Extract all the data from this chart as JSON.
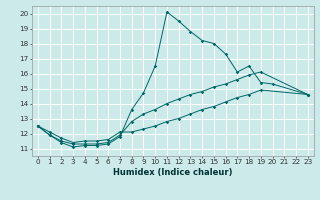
{
  "xlabel": "Humidex (Indice chaleur)",
  "ylabel": "",
  "background_color": "#cceaea",
  "grid_color": "#ffffff",
  "line_color": "#006666",
  "xlim": [
    -0.5,
    23.5
  ],
  "ylim": [
    10.5,
    20.5
  ],
  "xticks": [
    0,
    1,
    2,
    3,
    4,
    5,
    6,
    7,
    8,
    9,
    10,
    11,
    12,
    13,
    14,
    15,
    16,
    17,
    18,
    19,
    20,
    21,
    22,
    23
  ],
  "yticks": [
    11,
    12,
    13,
    14,
    15,
    16,
    17,
    18,
    19,
    20
  ],
  "line1_y": [
    12.5,
    11.9,
    11.4,
    11.1,
    11.2,
    11.2,
    11.3,
    11.8,
    13.6,
    14.7,
    16.5,
    20.1,
    19.5,
    18.8,
    18.2,
    18.0,
    17.3,
    16.1,
    16.5,
    15.4,
    15.3,
    null,
    null,
    14.6
  ],
  "line2_y": [
    12.5,
    11.9,
    11.5,
    11.3,
    11.3,
    11.3,
    11.4,
    11.9,
    12.8,
    13.3,
    13.6,
    14.0,
    14.3,
    14.6,
    14.8,
    15.1,
    15.3,
    15.6,
    15.9,
    16.1,
    null,
    null,
    null,
    14.6
  ],
  "line3_y": [
    12.5,
    12.1,
    11.7,
    11.4,
    11.5,
    11.5,
    11.6,
    12.1,
    12.1,
    12.3,
    12.5,
    12.8,
    13.0,
    13.3,
    13.6,
    13.8,
    14.1,
    14.4,
    14.6,
    14.9,
    null,
    null,
    null,
    14.6
  ],
  "xlabel_fontsize": 6.0,
  "tick_fontsize": 5.2
}
